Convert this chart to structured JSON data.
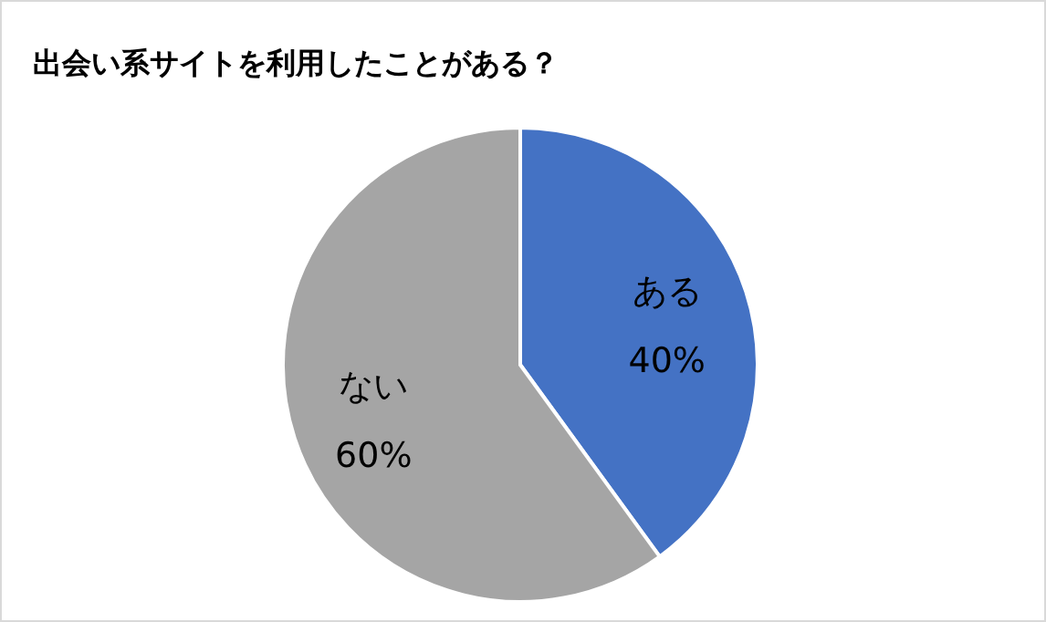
{
  "chart_data": {
    "type": "pie",
    "title": "出会い系サイトを利用したことがある？",
    "categories": [
      "ある",
      "ない"
    ],
    "values": [
      40,
      60
    ],
    "value_labels": [
      "40%",
      "60%"
    ],
    "colors": [
      "#4472c4",
      "#a5a5a5"
    ]
  }
}
